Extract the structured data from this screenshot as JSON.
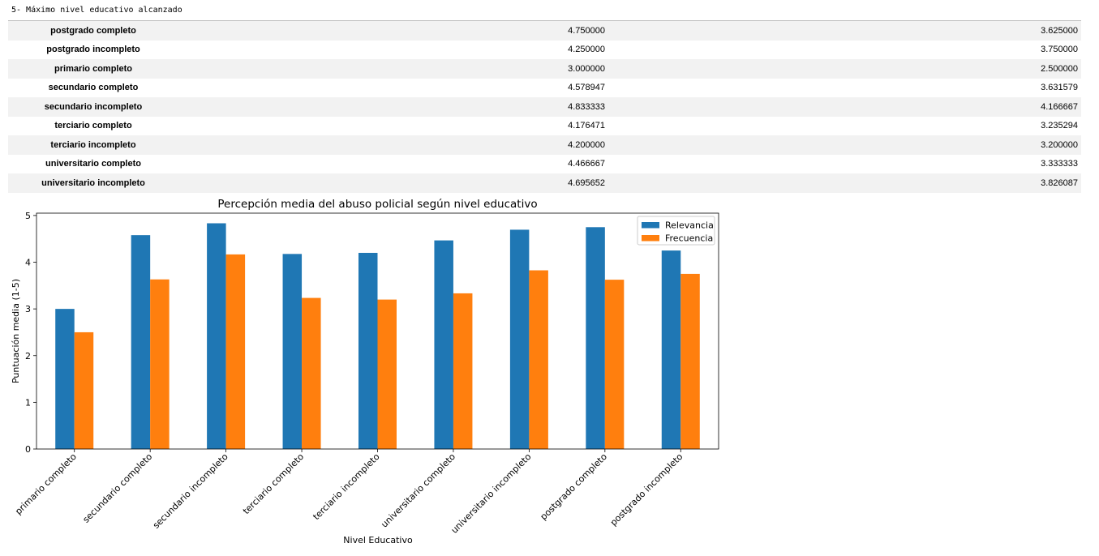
{
  "heading": "5- Máximo nivel educativo alcanzado",
  "table": {
    "rows": [
      {
        "label": "postgrado completo",
        "a": "4.750000",
        "b": "3.625000"
      },
      {
        "label": "postgrado incompleto",
        "a": "4.250000",
        "b": "3.750000"
      },
      {
        "label": "primario completo",
        "a": "3.000000",
        "b": "2.500000"
      },
      {
        "label": "secundario completo",
        "a": "4.578947",
        "b": "3.631579"
      },
      {
        "label": "secundario incompleto",
        "a": "4.833333",
        "b": "4.166667"
      },
      {
        "label": "terciario completo",
        "a": "4.176471",
        "b": "3.235294"
      },
      {
        "label": "terciario incompleto",
        "a": "4.200000",
        "b": "3.200000"
      },
      {
        "label": "universitario completo",
        "a": "4.466667",
        "b": "3.333333"
      },
      {
        "label": "universitario incompleto",
        "a": "4.695652",
        "b": "3.826087"
      }
    ]
  },
  "chart_data": {
    "type": "bar",
    "title": "Percepción media del abuso policial según nivel educativo",
    "xlabel": "Nivel Educativo",
    "ylabel": "Puntuación media (1-5)",
    "ylim": [
      0,
      5.05
    ],
    "yticks": [
      0,
      1,
      2,
      3,
      4,
      5
    ],
    "legend_position": "top-right",
    "categories": [
      "primario completo",
      "secundario completo",
      "secundario incompleto",
      "terciario completo",
      "terciario incompleto",
      "universitario completo",
      "universitario incompleto",
      "postgrado completo",
      "postgrado incompleto"
    ],
    "series": [
      {
        "name": "Relevancia",
        "color": "#1f77b4",
        "values": [
          3.0,
          4.578947,
          4.833333,
          4.176471,
          4.2,
          4.466667,
          4.695652,
          4.75,
          4.25
        ]
      },
      {
        "name": "Frecuencia",
        "color": "#ff7f0e",
        "values": [
          2.5,
          3.631579,
          4.166667,
          3.235294,
          3.2,
          3.333333,
          3.826087,
          3.625,
          3.75
        ]
      }
    ]
  }
}
